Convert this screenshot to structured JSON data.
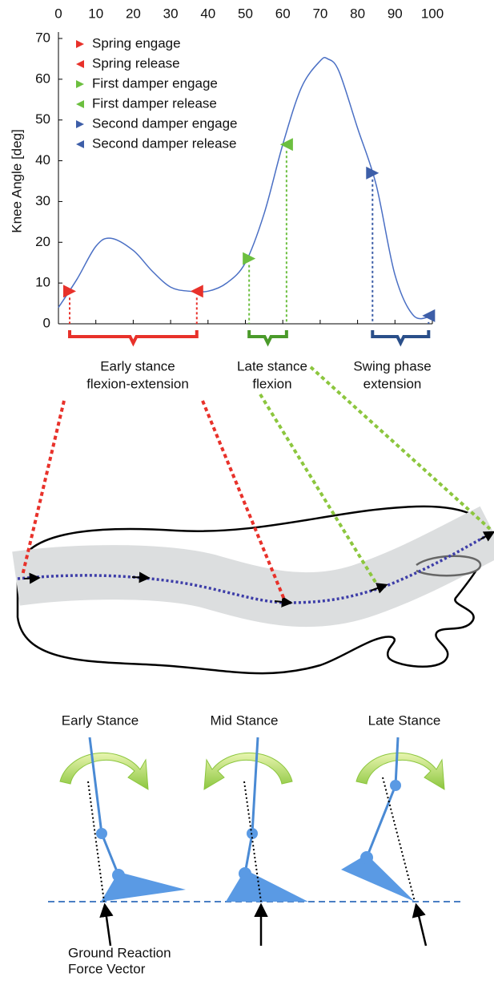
{
  "chart_data": {
    "type": "line",
    "ylabel": "Knee Angle [deg]",
    "xlim": [
      0,
      100
    ],
    "xticks": [
      0,
      10,
      20,
      30,
      40,
      50,
      60,
      70,
      80,
      90,
      100
    ],
    "ylim": [
      0,
      70
    ],
    "yticks": [
      0,
      10,
      20,
      30,
      40,
      50,
      60,
      70
    ],
    "legend": "upper left",
    "curve": {
      "color": "#4a6fc4",
      "x": [
        0,
        5,
        10,
        14,
        20,
        25,
        30,
        35,
        40,
        45,
        50,
        55,
        60,
        65,
        70,
        72,
        75,
        80,
        85,
        90,
        95,
        100
      ],
      "values": [
        4,
        11,
        19,
        21,
        18,
        13,
        9,
        8,
        8,
        10,
        15,
        27,
        44,
        58,
        64.5,
        65,
        62,
        48,
        34,
        12,
        2,
        2
      ]
    },
    "series": [
      {
        "name": "Spring engage",
        "color": "#e8312a",
        "direction": "right",
        "x": [
          3
        ],
        "values": [
          8
        ]
      },
      {
        "name": "Spring release",
        "color": "#e8312a",
        "direction": "left",
        "x": [
          37
        ],
        "values": [
          8
        ]
      },
      {
        "name": "First damper engage",
        "color": "#6cbf3f",
        "direction": "right",
        "x": [
          51
        ],
        "values": [
          16
        ]
      },
      {
        "name": "First damper release",
        "color": "#6cbf3f",
        "direction": "left",
        "x": [
          61
        ],
        "values": [
          44
        ]
      },
      {
        "name": "Second damper engage",
        "color": "#3d5ea8",
        "direction": "right",
        "x": [
          84
        ],
        "values": [
          37
        ]
      },
      {
        "name": "Second damper release",
        "color": "#3d5ea8",
        "direction": "left",
        "x": [
          99
        ],
        "values": [
          2
        ]
      }
    ],
    "annotations": [
      {
        "text": [
          "Early stance",
          "flexion-extension"
        ],
        "color": "#e8312a"
      },
      {
        "text": [
          "Late stance",
          "flexion"
        ],
        "color": "#4a9a2a"
      },
      {
        "text": [
          "Swing phase",
          "extension"
        ],
        "color": "#2a4f8a"
      }
    ]
  },
  "diagram": {
    "stances": [
      "Early Stance",
      "Mid Stance",
      "Late Stance"
    ],
    "force_label": [
      "Ground Reaction",
      "Force Vector"
    ]
  }
}
